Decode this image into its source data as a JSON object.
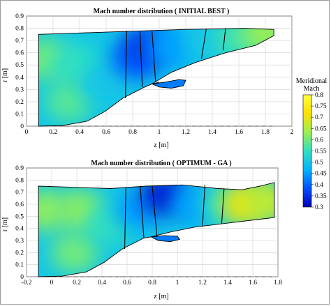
{
  "chart_data": [
    {
      "type": "heatmap",
      "title": "Mach number distribution ( INITIAL BEST )",
      "xlabel": "z [m]",
      "ylabel": "r [m]",
      "xlim": [
        -0.2,
        2
      ],
      "ylim": [
        0,
        0.9
      ],
      "xticks": [
        "0",
        "0.2",
        "0.4",
        "0.6",
        "0.8",
        "1",
        "1.2",
        "1.4",
        "1.6",
        "1.8",
        "2"
      ],
      "yticks": [
        "0",
        "0.1",
        "0.2",
        "0.3",
        "0.4",
        "0.5",
        "0.6",
        "0.7",
        "0.8",
        "0.9"
      ],
      "grid": true,
      "hub": [
        [
          -0.1,
          0.0
        ],
        [
          0.1,
          0.005
        ],
        [
          0.3,
          0.04
        ],
        [
          0.45,
          0.12
        ],
        [
          0.6,
          0.23
        ],
        [
          0.7,
          0.28
        ],
        [
          0.78,
          0.32
        ],
        [
          0.84,
          0.345
        ],
        [
          0.9,
          0.36
        ]
      ],
      "shroud": [
        [
          -0.1,
          0.75
        ],
        [
          0.2,
          0.76
        ],
        [
          0.5,
          0.77
        ],
        [
          0.8,
          0.78
        ],
        [
          1.1,
          0.79
        ],
        [
          1.4,
          0.795
        ],
        [
          1.6,
          0.8
        ],
        [
          1.72,
          0.795
        ],
        [
          1.85,
          0.79
        ],
        [
          1.85,
          0.74
        ]
      ],
      "outer_bottom": [
        [
          0.84,
          0.345
        ],
        [
          1.0,
          0.44
        ],
        [
          1.2,
          0.52
        ],
        [
          1.45,
          0.6
        ],
        [
          1.7,
          0.66
        ],
        [
          1.85,
          0.74
        ]
      ],
      "splitter": [
        [
          0.84,
          0.345
        ],
        [
          0.95,
          0.36
        ],
        [
          1.06,
          0.38
        ],
        [
          1.12,
          0.375
        ],
        [
          1.1,
          0.33
        ],
        [
          1.0,
          0.31
        ],
        [
          0.9,
          0.32
        ],
        [
          0.84,
          0.345
        ]
      ],
      "blades": [
        [
          [
            0.62,
            0.23
          ],
          [
            0.63,
            0.78
          ]
        ],
        [
          [
            0.76,
            0.32
          ],
          [
            0.74,
            0.78
          ]
        ],
        [
          [
            0.87,
            0.36
          ],
          [
            0.84,
            0.78
          ]
        ],
        [
          [
            1.25,
            0.55
          ],
          [
            1.29,
            0.795
          ]
        ],
        [
          [
            1.43,
            0.62
          ],
          [
            1.45,
            0.8
          ]
        ]
      ],
      "field": [
        {
          "z": -0.05,
          "r": 0.55,
          "mach": 0.6
        },
        {
          "z": 0.2,
          "r": 0.5,
          "mach": 0.55
        },
        {
          "z": 0.15,
          "r": 0.2,
          "mach": 0.58
        },
        {
          "z": 0.45,
          "r": 0.35,
          "mach": 0.5
        },
        {
          "z": 0.7,
          "r": 0.55,
          "mach": 0.4
        },
        {
          "z": 0.8,
          "r": 0.65,
          "mach": 0.36
        },
        {
          "z": 1.0,
          "r": 0.65,
          "mach": 0.45
        },
        {
          "z": 1.3,
          "r": 0.7,
          "mach": 0.5
        },
        {
          "z": 1.55,
          "r": 0.72,
          "mach": 0.56
        },
        {
          "z": 1.78,
          "r": 0.76,
          "mach": 0.63
        }
      ]
    },
    {
      "type": "heatmap",
      "title": "Mach number distribution ( OPTIMUM - GA )",
      "xlabel": "z [m]",
      "ylabel": "r [m]",
      "xlim": [
        -0.2,
        1.9
      ],
      "ylim": [
        0,
        0.9
      ],
      "xticks": [
        "-0.2",
        "0",
        "0.2",
        "0.4",
        "0.6",
        "0.8",
        "1",
        "1.2",
        "1.4",
        "1.6",
        "1.8"
      ],
      "yticks": [
        "0",
        "0.1",
        "0.2",
        "0.3",
        "0.4",
        "0.5",
        "0.6",
        "0.7",
        "0.8",
        "0.9"
      ],
      "grid": true,
      "hub": [
        [
          -0.1,
          0.0
        ],
        [
          0.1,
          0.005
        ],
        [
          0.3,
          0.04
        ],
        [
          0.45,
          0.12
        ],
        [
          0.6,
          0.23
        ],
        [
          0.7,
          0.28
        ],
        [
          0.78,
          0.32
        ],
        [
          0.84,
          0.33
        ],
        [
          0.9,
          0.33
        ]
      ],
      "shroud": [
        [
          -0.1,
          0.75
        ],
        [
          0.2,
          0.74
        ],
        [
          0.5,
          0.73
        ],
        [
          0.8,
          0.75
        ],
        [
          1.1,
          0.76
        ],
        [
          1.4,
          0.73
        ],
        [
          1.6,
          0.72
        ],
        [
          1.75,
          0.75
        ],
        [
          1.87,
          0.78
        ],
        [
          1.87,
          0.49
        ]
      ],
      "outer_bottom": [
        [
          0.84,
          0.33
        ],
        [
          1.0,
          0.37
        ],
        [
          1.2,
          0.41
        ],
        [
          1.45,
          0.44
        ],
        [
          1.7,
          0.47
        ],
        [
          1.87,
          0.49
        ]
      ],
      "splitter": [
        [
          0.84,
          0.33
        ],
        [
          0.95,
          0.34
        ],
        [
          1.06,
          0.335
        ],
        [
          1.08,
          0.31
        ],
        [
          1.0,
          0.29
        ],
        [
          0.9,
          0.3
        ],
        [
          0.84,
          0.33
        ]
      ],
      "blades": [
        [
          [
            0.62,
            0.23
          ],
          [
            0.63,
            0.74
          ]
        ],
        [
          [
            0.78,
            0.32
          ],
          [
            0.75,
            0.75
          ]
        ],
        [
          [
            0.89,
            0.33
          ],
          [
            0.85,
            0.75
          ]
        ],
        [
          [
            1.27,
            0.42
          ],
          [
            1.29,
            0.76
          ]
        ],
        [
          [
            1.43,
            0.44
          ],
          [
            1.45,
            0.73
          ]
        ]
      ],
      "field": [
        {
          "z": -0.05,
          "r": 0.55,
          "mach": 0.62
        },
        {
          "z": 0.25,
          "r": 0.55,
          "mach": 0.62
        },
        {
          "z": 0.2,
          "r": 0.2,
          "mach": 0.6
        },
        {
          "z": 0.5,
          "r": 0.45,
          "mach": 0.55
        },
        {
          "z": 0.72,
          "r": 0.55,
          "mach": 0.45
        },
        {
          "z": 0.95,
          "r": 0.68,
          "mach": 0.33
        },
        {
          "z": 1.2,
          "r": 0.6,
          "mach": 0.45
        },
        {
          "z": 1.45,
          "r": 0.6,
          "mach": 0.55
        },
        {
          "z": 1.62,
          "r": 0.6,
          "mach": 0.7
        },
        {
          "z": 1.8,
          "r": 0.62,
          "mach": 0.66
        }
      ]
    }
  ],
  "colorbar": {
    "title_line1": "Meridional",
    "title_line2": "Mach",
    "ticks": [
      "0.3",
      "0.35",
      "0.4",
      "0.45",
      "0.5",
      "0.55",
      "0.6",
      "0.65",
      "0.7",
      "0.75",
      "0.8"
    ],
    "range": [
      0.3,
      0.8
    ],
    "colors": [
      "#0000b4",
      "#0050ff",
      "#00b4ff",
      "#30e0c0",
      "#9cf050",
      "#ffe000",
      "#ffff40"
    ]
  }
}
